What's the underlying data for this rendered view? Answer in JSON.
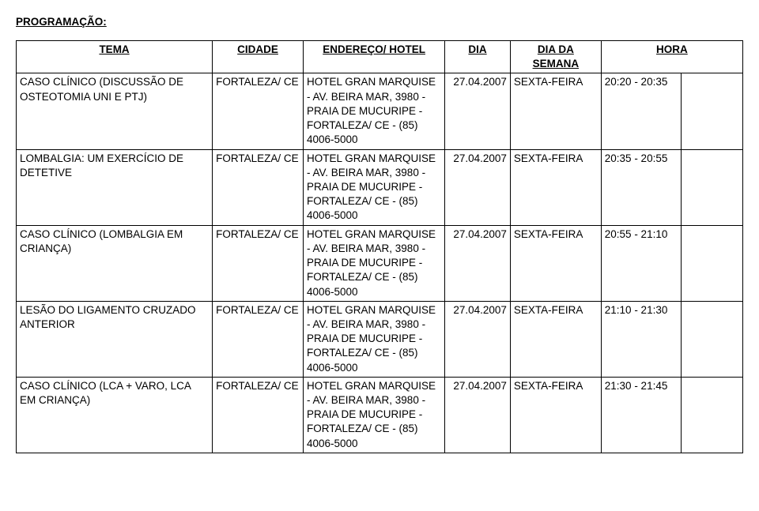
{
  "title": "PROGRAMAÇÃO:",
  "headers": {
    "tema": "TEMA",
    "cidade": "CIDADE",
    "endereco": "ENDEREÇO/ HOTEL",
    "dia": "DIA",
    "dia_semana": "DIA DA SEMANA",
    "hora": "HORA"
  },
  "address_text": "HOTEL GRAN MARQUISE - AV. BEIRA MAR, 3980 - PRAIA DE MUCURIPE - FORTALEZA/ CE - (85) 4006-5000",
  "cidade_text": "FORTALEZA/ CE",
  "dia_text": "27.04.2007",
  "dia_semana_text": "SEXTA-FEIRA",
  "rows": [
    {
      "tema": "CASO CLÍNICO (DISCUSSÃO DE OSTEOTOMIA UNI E PTJ)",
      "hora": "20:20 - 20:35"
    },
    {
      "tema": "LOMBALGIA: UM EXERCÍCIO DE DETETIVE",
      "hora": "20:35 - 20:55"
    },
    {
      "tema": "CASO CLÍNICO (LOMBALGIA EM CRIANÇA)",
      "hora": "20:55 - 21:10"
    },
    {
      "tema": "LESÃO DO LIGAMENTO CRUZADO ANTERIOR",
      "hora": "21:10 - 21:30"
    },
    {
      "tema": "CASO CLÍNICO (LCA + VARO, LCA EM CRIANÇA)",
      "hora": "21:30 - 21:45"
    }
  ],
  "colors": {
    "background": "#ffffff",
    "text": "#000000",
    "border": "#000000"
  }
}
